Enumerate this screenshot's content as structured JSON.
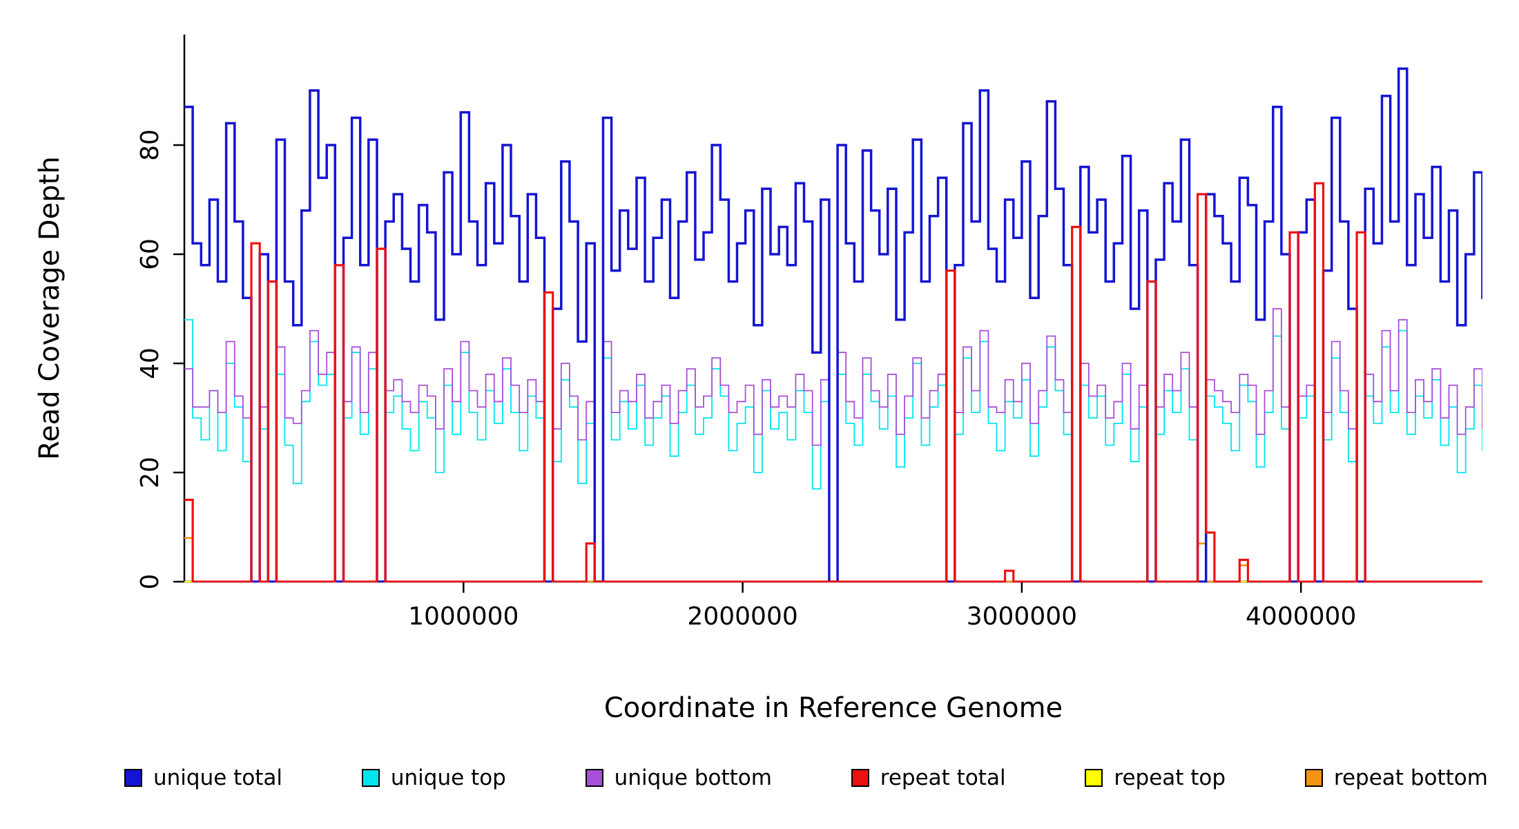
{
  "chart_data": {
    "type": "line",
    "style": "step",
    "title": "",
    "xlabel": "Coordinate in Reference Genome",
    "ylabel": "Read Coverage Depth",
    "xlim": [
      0,
      4650000
    ],
    "ylim": [
      0,
      100
    ],
    "x_ticks": [
      1000000,
      2000000,
      3000000,
      4000000
    ],
    "x_tick_labels": [
      "1000000",
      "2000000",
      "3000000",
      "4000000"
    ],
    "y_ticks": [
      0,
      20,
      40,
      60,
      80
    ],
    "y_tick_labels": [
      "0",
      "20",
      "40",
      "60",
      "80"
    ],
    "grid": false,
    "legend_position": "bottom",
    "x_start": 0,
    "x_step": 30000,
    "n_points": 156,
    "draw_order": [
      4,
      5,
      1,
      2,
      0,
      3
    ],
    "series": [
      {
        "name": "unique total",
        "color": "#1414D4",
        "width": 3.5,
        "values": [
          87,
          62,
          58,
          70,
          55,
          84,
          66,
          52,
          0,
          60,
          0,
          81,
          55,
          47,
          68,
          90,
          74,
          80,
          0,
          63,
          85,
          58,
          81,
          0,
          66,
          71,
          61,
          55,
          69,
          64,
          48,
          75,
          60,
          86,
          66,
          58,
          73,
          62,
          80,
          67,
          55,
          71,
          63,
          0,
          50,
          77,
          66,
          44,
          62,
          0,
          85,
          57,
          68,
          61,
          74,
          55,
          63,
          70,
          52,
          66,
          75,
          59,
          64,
          80,
          70,
          55,
          62,
          68,
          47,
          72,
          60,
          65,
          58,
          73,
          66,
          42,
          70,
          0,
          80,
          62,
          55,
          79,
          68,
          60,
          72,
          48,
          64,
          81,
          55,
          67,
          74,
          0,
          58,
          84,
          66,
          90,
          61,
          55,
          70,
          63,
          77,
          52,
          67,
          88,
          72,
          58,
          0,
          76,
          64,
          70,
          55,
          62,
          78,
          50,
          68,
          0,
          59,
          73,
          66,
          81,
          58,
          0,
          71,
          67,
          62,
          55,
          74,
          69,
          48,
          66,
          87,
          60,
          0,
          64,
          70,
          0,
          57,
          85,
          66,
          50,
          0,
          72,
          62,
          89,
          66,
          94,
          58,
          71,
          63,
          76,
          55,
          68,
          47,
          60,
          75,
          52
        ]
      },
      {
        "name": "unique top",
        "color": "#00E5EE",
        "width": 1.8,
        "values": [
          48,
          30,
          26,
          35,
          24,
          40,
          32,
          22,
          0,
          28,
          0,
          38,
          25,
          18,
          33,
          44,
          36,
          38,
          0,
          30,
          42,
          27,
          39,
          0,
          31,
          34,
          28,
          24,
          33,
          30,
          20,
          36,
          27,
          42,
          31,
          26,
          35,
          29,
          39,
          31,
          24,
          34,
          30,
          0,
          22,
          37,
          32,
          18,
          29,
          0,
          41,
          26,
          33,
          28,
          36,
          25,
          30,
          34,
          23,
          31,
          36,
          27,
          30,
          39,
          34,
          24,
          29,
          32,
          20,
          35,
          28,
          31,
          26,
          35,
          31,
          17,
          33,
          0,
          38,
          29,
          25,
          38,
          33,
          28,
          34,
          21,
          30,
          40,
          25,
          32,
          36,
          0,
          27,
          41,
          31,
          44,
          29,
          24,
          33,
          30,
          37,
          23,
          32,
          43,
          35,
          27,
          0,
          36,
          30,
          34,
          25,
          29,
          38,
          22,
          32,
          0,
          27,
          35,
          31,
          39,
          26,
          0,
          34,
          32,
          29,
          24,
          36,
          33,
          21,
          31,
          45,
          28,
          0,
          30,
          34,
          0,
          26,
          41,
          31,
          22,
          0,
          34,
          29,
          43,
          31,
          46,
          27,
          34,
          30,
          37,
          25,
          32,
          20,
          28,
          36,
          24
        ]
      },
      {
        "name": "unique bottom",
        "color": "#A74FD8",
        "width": 1.8,
        "values": [
          39,
          32,
          32,
          35,
          31,
          44,
          34,
          30,
          0,
          32,
          0,
          43,
          30,
          29,
          35,
          46,
          38,
          42,
          0,
          33,
          43,
          31,
          42,
          0,
          35,
          37,
          33,
          31,
          36,
          34,
          28,
          39,
          33,
          44,
          35,
          32,
          38,
          33,
          41,
          36,
          31,
          37,
          33,
          0,
          28,
          40,
          34,
          26,
          33,
          0,
          44,
          31,
          35,
          33,
          38,
          30,
          33,
          36,
          29,
          35,
          39,
          32,
          34,
          41,
          36,
          31,
          33,
          36,
          27,
          37,
          32,
          34,
          32,
          38,
          35,
          25,
          37,
          0,
          42,
          33,
          30,
          41,
          35,
          32,
          38,
          27,
          34,
          41,
          30,
          35,
          38,
          0,
          31,
          43,
          35,
          46,
          32,
          31,
          37,
          33,
          40,
          29,
          35,
          45,
          37,
          31,
          0,
          40,
          34,
          36,
          30,
          33,
          40,
          28,
          36,
          0,
          32,
          38,
          35,
          42,
          32,
          0,
          37,
          35,
          33,
          31,
          38,
          36,
          27,
          35,
          50,
          32,
          0,
          34,
          36,
          0,
          31,
          44,
          35,
          28,
          0,
          38,
          33,
          46,
          35,
          48,
          31,
          37,
          33,
          39,
          30,
          36,
          27,
          32,
          39,
          28
        ]
      },
      {
        "name": "repeat total",
        "color": "#EE1111",
        "width": 3.2,
        "baseline": 0,
        "spikes": {
          "0": 15,
          "8": 62,
          "10": 55,
          "18": 58,
          "23": 61,
          "43": 53,
          "48": 7,
          "91": 57,
          "98": 2,
          "106": 65,
          "115": 55,
          "121": 71,
          "122": 9,
          "126": 4,
          "132": 64,
          "135": 73,
          "140": 64
        }
      },
      {
        "name": "repeat top",
        "color": "#FFFF00",
        "width": 2,
        "baseline": 0,
        "spikes": {}
      },
      {
        "name": "repeat bottom",
        "color": "#F59313",
        "width": 2.6,
        "baseline": 0,
        "spikes": {
          "0": 8,
          "121": 7,
          "126": 3
        }
      }
    ]
  }
}
